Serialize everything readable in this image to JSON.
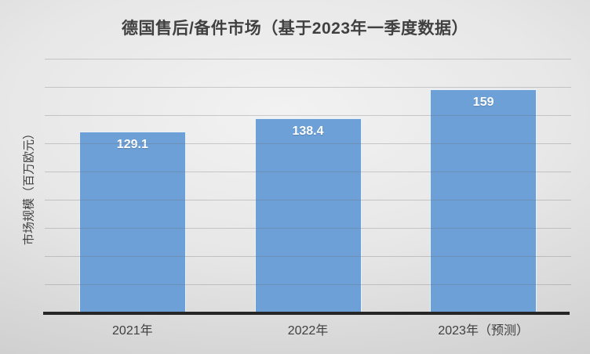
{
  "chart": {
    "title": "德国售后/备件市场（基于2023年一季度数据）",
    "y_axis_title": "市场规模（百万欧元）"
  },
  "chart_data": {
    "type": "bar",
    "title": "德国售后/备件市场（基于2023年一季度数据）",
    "xlabel": "",
    "ylabel": "市场规模（百万欧元）",
    "categories": [
      "2021年",
      "2022年",
      "2023年（预测）"
    ],
    "values": [
      129.1,
      138.4,
      159
    ],
    "value_labels": [
      "129.1",
      "138.4",
      "159"
    ],
    "ylim": [
      0,
      180
    ],
    "gridline_step": 20,
    "grid": true,
    "y_tick_labels_visible": false,
    "legend": "none",
    "colors": {
      "bar_fill": "#6CA0D7",
      "bar_border": "#E9F1F8",
      "value_label_text": "#FFFFFF",
      "title_text": "#404040",
      "axis_text": "#404040",
      "axis_line": "#262626",
      "gridline": "#9E9E9E",
      "background_center": "#F2F2F2",
      "background_edge": "#C6C6C6"
    }
  }
}
